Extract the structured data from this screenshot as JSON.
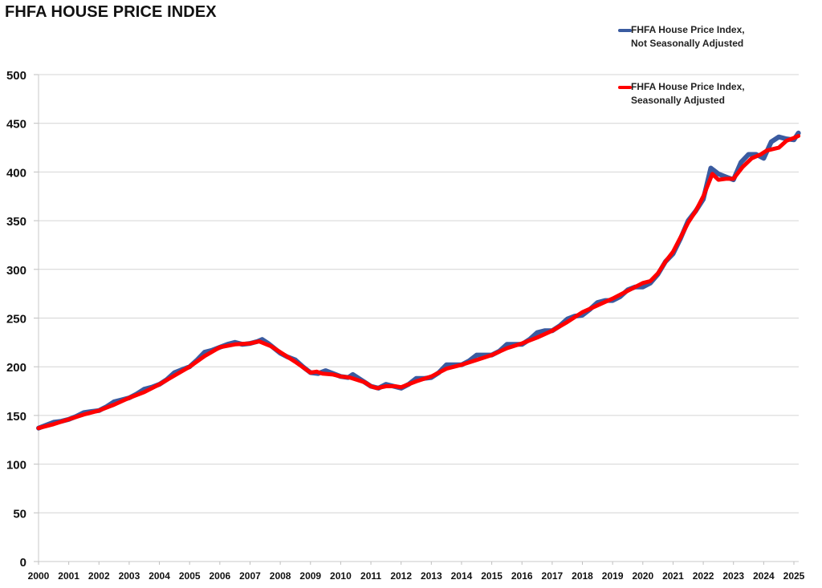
{
  "chart_data": {
    "type": "line",
    "title": "FHFA HOUSE PRICE INDEX",
    "xlabel": "",
    "ylabel": "",
    "xlim": [
      2000,
      2025.15
    ],
    "ylim": [
      0,
      500
    ],
    "x_ticks": [
      "2000",
      "2001",
      "2002",
      "2003",
      "2004",
      "2005",
      "2006",
      "2007",
      "2008",
      "2009",
      "2010",
      "2011",
      "2012",
      "2013",
      "2014",
      "2015",
      "2016",
      "2017",
      "2018",
      "2019",
      "2020",
      "2021",
      "2022",
      "2023",
      "2024",
      "2025"
    ],
    "y_ticks": [
      0,
      50,
      100,
      150,
      200,
      250,
      300,
      350,
      400,
      450,
      500
    ],
    "grid": "horizontal",
    "legend_position": "top-right",
    "series": [
      {
        "name": "FHFA House Price Index, Not Seasonally Adjusted",
        "legend_lines": [
          "FHFA House Price Index,",
          "Not Seasonally Adjusted"
        ],
        "color": "#3A5BA0",
        "points": [
          [
            2000.0,
            137
          ],
          [
            2000.25,
            140
          ],
          [
            2000.5,
            143
          ],
          [
            2000.75,
            144
          ],
          [
            2001.0,
            146
          ],
          [
            2001.25,
            149
          ],
          [
            2001.5,
            153
          ],
          [
            2001.75,
            154
          ],
          [
            2002.0,
            155
          ],
          [
            2002.25,
            159
          ],
          [
            2002.5,
            164
          ],
          [
            2002.75,
            166
          ],
          [
            2003.0,
            168
          ],
          [
            2003.25,
            172
          ],
          [
            2003.5,
            177
          ],
          [
            2003.75,
            179
          ],
          [
            2004.0,
            182
          ],
          [
            2004.25,
            187
          ],
          [
            2004.5,
            194
          ],
          [
            2004.75,
            197
          ],
          [
            2005.0,
            200
          ],
          [
            2005.25,
            207
          ],
          [
            2005.5,
            215
          ],
          [
            2005.75,
            217
          ],
          [
            2006.0,
            220
          ],
          [
            2006.25,
            223
          ],
          [
            2006.5,
            225
          ],
          [
            2006.75,
            223
          ],
          [
            2007.0,
            224
          ],
          [
            2007.25,
            226
          ],
          [
            2007.4,
            228
          ],
          [
            2007.6,
            224
          ],
          [
            2007.8,
            219
          ],
          [
            2008.0,
            214
          ],
          [
            2008.25,
            210
          ],
          [
            2008.5,
            207
          ],
          [
            2008.75,
            200
          ],
          [
            2009.0,
            194
          ],
          [
            2009.25,
            193
          ],
          [
            2009.5,
            196
          ],
          [
            2009.75,
            193
          ],
          [
            2010.0,
            190
          ],
          [
            2010.25,
            189
          ],
          [
            2010.4,
            192
          ],
          [
            2010.6,
            188
          ],
          [
            2010.85,
            183
          ],
          [
            2011.0,
            180
          ],
          [
            2011.25,
            178
          ],
          [
            2011.5,
            182
          ],
          [
            2011.75,
            180
          ],
          [
            2012.0,
            178
          ],
          [
            2012.25,
            182
          ],
          [
            2012.5,
            188
          ],
          [
            2012.75,
            188
          ],
          [
            2013.0,
            189
          ],
          [
            2013.25,
            194
          ],
          [
            2013.5,
            202
          ],
          [
            2013.75,
            202
          ],
          [
            2014.0,
            202
          ],
          [
            2014.25,
            206
          ],
          [
            2014.5,
            212
          ],
          [
            2014.75,
            212
          ],
          [
            2015.0,
            212
          ],
          [
            2015.25,
            216
          ],
          [
            2015.5,
            223
          ],
          [
            2015.75,
            223
          ],
          [
            2016.0,
            223
          ],
          [
            2016.25,
            228
          ],
          [
            2016.5,
            235
          ],
          [
            2016.75,
            237
          ],
          [
            2017.0,
            237
          ],
          [
            2017.25,
            242
          ],
          [
            2017.5,
            249
          ],
          [
            2017.75,
            252
          ],
          [
            2018.0,
            253
          ],
          [
            2018.25,
            259
          ],
          [
            2018.5,
            266
          ],
          [
            2018.75,
            268
          ],
          [
            2019.0,
            268
          ],
          [
            2019.25,
            272
          ],
          [
            2019.5,
            279
          ],
          [
            2019.75,
            282
          ],
          [
            2020.0,
            282
          ],
          [
            2020.25,
            286
          ],
          [
            2020.5,
            295
          ],
          [
            2020.75,
            308
          ],
          [
            2021.0,
            316
          ],
          [
            2021.25,
            332
          ],
          [
            2021.5,
            350
          ],
          [
            2021.75,
            360
          ],
          [
            2022.0,
            372
          ],
          [
            2022.25,
            404
          ],
          [
            2022.5,
            398
          ],
          [
            2022.75,
            395
          ],
          [
            2023.0,
            392
          ],
          [
            2023.25,
            410
          ],
          [
            2023.5,
            418
          ],
          [
            2023.75,
            418
          ],
          [
            2024.0,
            414
          ],
          [
            2024.25,
            431
          ],
          [
            2024.5,
            436
          ],
          [
            2024.75,
            434
          ],
          [
            2025.0,
            433
          ],
          [
            2025.15,
            440
          ]
        ]
      },
      {
        "name": "FHFA House Price Index, Seasonally Adjusted",
        "legend_lines": [
          "FHFA House Price Index,",
          "Seasonally Adjusted"
        ],
        "color": "#FF0000",
        "points": [
          [
            2000.0,
            137
          ],
          [
            2000.5,
            141
          ],
          [
            2001.0,
            146
          ],
          [
            2001.5,
            151
          ],
          [
            2002.0,
            155
          ],
          [
            2002.5,
            161
          ],
          [
            2003.0,
            168
          ],
          [
            2003.5,
            174
          ],
          [
            2004.0,
            182
          ],
          [
            2004.5,
            191
          ],
          [
            2005.0,
            200
          ],
          [
            2005.5,
            211
          ],
          [
            2006.0,
            220
          ],
          [
            2006.5,
            223
          ],
          [
            2007.0,
            224
          ],
          [
            2007.3,
            226
          ],
          [
            2007.7,
            221
          ],
          [
            2008.0,
            215
          ],
          [
            2008.5,
            205
          ],
          [
            2009.0,
            194
          ],
          [
            2009.2,
            195
          ],
          [
            2009.4,
            193
          ],
          [
            2009.75,
            192
          ],
          [
            2010.0,
            190
          ],
          [
            2010.3,
            189
          ],
          [
            2010.5,
            187
          ],
          [
            2010.8,
            184
          ],
          [
            2011.0,
            180
          ],
          [
            2011.2,
            178
          ],
          [
            2011.5,
            180
          ],
          [
            2011.8,
            180
          ],
          [
            2012.0,
            179
          ],
          [
            2012.5,
            185
          ],
          [
            2013.0,
            190
          ],
          [
            2013.5,
            198
          ],
          [
            2014.0,
            202
          ],
          [
            2014.5,
            207
          ],
          [
            2015.0,
            212
          ],
          [
            2015.5,
            219
          ],
          [
            2016.0,
            224
          ],
          [
            2016.5,
            230
          ],
          [
            2017.0,
            237
          ],
          [
            2017.5,
            246
          ],
          [
            2018.0,
            256
          ],
          [
            2018.5,
            263
          ],
          [
            2019.0,
            270
          ],
          [
            2019.5,
            278
          ],
          [
            2020.0,
            286
          ],
          [
            2020.25,
            288
          ],
          [
            2020.5,
            296
          ],
          [
            2020.75,
            308
          ],
          [
            2021.0,
            318
          ],
          [
            2021.25,
            333
          ],
          [
            2021.5,
            348
          ],
          [
            2021.75,
            360
          ],
          [
            2022.0,
            375
          ],
          [
            2022.3,
            398
          ],
          [
            2022.5,
            392
          ],
          [
            2022.75,
            393
          ],
          [
            2023.0,
            393
          ],
          [
            2023.3,
            405
          ],
          [
            2023.6,
            414
          ],
          [
            2023.9,
            418
          ],
          [
            2024.1,
            422
          ],
          [
            2024.5,
            425
          ],
          [
            2024.75,
            432
          ],
          [
            2025.0,
            435
          ],
          [
            2025.15,
            437
          ]
        ]
      }
    ]
  }
}
